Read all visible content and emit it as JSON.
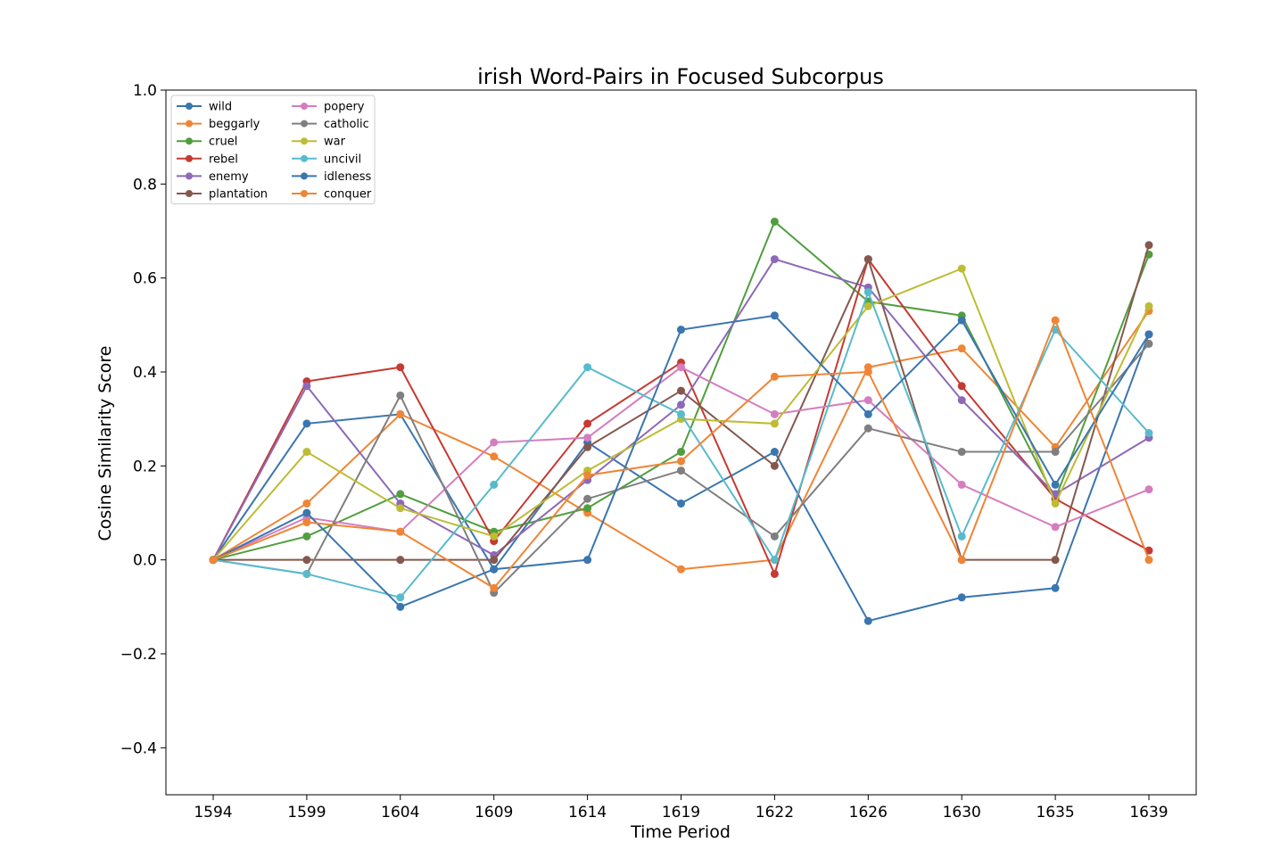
{
  "chart_data": {
    "type": "line",
    "title": "irish Word-Pairs in Focused Subcorpus",
    "xlabel": "Time Period",
    "ylabel": "Cosine Similarity Score",
    "ylim": [
      -0.5,
      1.0
    ],
    "yticks": [
      -0.4,
      -0.2,
      0.0,
      0.2,
      0.4,
      0.6,
      0.8,
      1.0
    ],
    "ytick_labels": [
      "−0.4",
      "−0.2",
      "0.0",
      "0.2",
      "0.4",
      "0.6",
      "0.8",
      "1.0"
    ],
    "categories": [
      "1594",
      "1599",
      "1604",
      "1609",
      "1614",
      "1619",
      "1622",
      "1626",
      "1630",
      "1635",
      "1639"
    ],
    "legend_position": "top-left",
    "series": [
      {
        "name": "wild",
        "color": "#3a76af",
        "values": [
          0.0,
          0.29,
          0.31,
          -0.02,
          0.25,
          0.12,
          0.23,
          -0.13,
          -0.08,
          -0.06,
          0.48
        ]
      },
      {
        "name": "beggarly",
        "color": "#ef8536",
        "values": [
          0.0,
          0.12,
          0.31,
          0.22,
          0.1,
          -0.02,
          0.0,
          0.41,
          0.45,
          0.24,
          0.53
        ]
      },
      {
        "name": "cruel",
        "color": "#519e3e",
        "values": [
          0.0,
          0.05,
          0.14,
          0.06,
          0.11,
          0.23,
          0.72,
          0.55,
          0.52,
          0.13,
          0.65
        ]
      },
      {
        "name": "rebel",
        "color": "#c53a32",
        "values": [
          0.0,
          0.38,
          0.41,
          0.04,
          0.29,
          0.42,
          -0.03,
          0.64,
          0.37,
          0.13,
          0.02
        ]
      },
      {
        "name": "enemy",
        "color": "#8d69b8",
        "values": [
          0.0,
          0.37,
          0.12,
          0.01,
          0.17,
          0.33,
          0.64,
          0.58,
          0.34,
          0.14,
          0.26
        ]
      },
      {
        "name": "plantation",
        "color": "#84584e",
        "values": [
          0.0,
          0.0,
          0.0,
          0.0,
          0.24,
          0.36,
          0.2,
          0.64,
          0.0,
          0.0,
          0.67
        ]
      },
      {
        "name": "popery",
        "color": "#d57dbf",
        "values": [
          0.0,
          0.09,
          0.06,
          0.25,
          0.26,
          0.41,
          0.31,
          0.34,
          0.16,
          0.07,
          0.15
        ]
      },
      {
        "name": "catholic",
        "color": "#7f7f7f",
        "values": [
          0.0,
          -0.03,
          0.35,
          -0.07,
          0.13,
          0.19,
          0.05,
          0.28,
          0.23,
          0.23,
          0.46
        ]
      },
      {
        "name": "war",
        "color": "#bcbc35",
        "values": [
          0.0,
          0.23,
          0.11,
          0.05,
          0.19,
          0.3,
          0.29,
          0.54,
          0.62,
          0.12,
          0.54
        ]
      },
      {
        "name": "uncivil",
        "color": "#57bbcc",
        "values": [
          0.0,
          -0.03,
          -0.08,
          0.16,
          0.41,
          0.31,
          0.0,
          0.57,
          0.05,
          0.49,
          0.27
        ]
      },
      {
        "name": "idleness",
        "color": "#3a76af",
        "values": [
          0.0,
          0.1,
          -0.1,
          -0.02,
          0.0,
          0.49,
          0.52,
          0.31,
          0.51,
          0.16,
          0.48
        ]
      },
      {
        "name": "conquer",
        "color": "#ef8536",
        "values": [
          0.0,
          0.08,
          0.06,
          -0.06,
          0.18,
          0.21,
          0.39,
          0.4,
          0.0,
          0.51,
          0.0
        ]
      }
    ]
  }
}
